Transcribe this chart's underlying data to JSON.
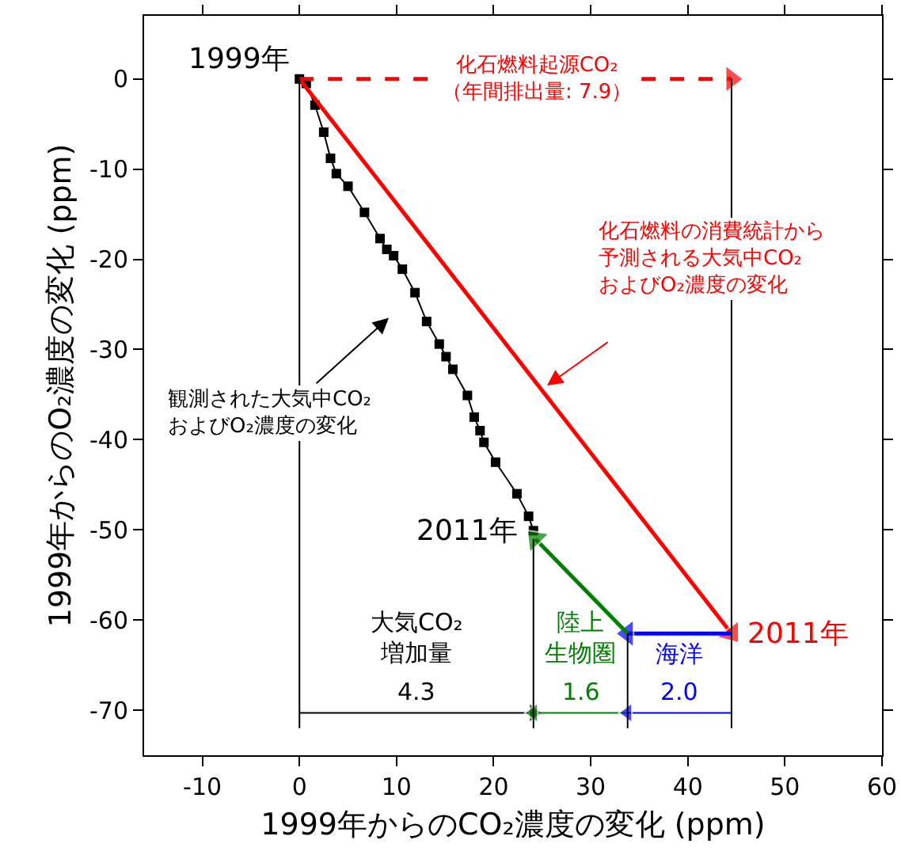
{
  "chart_data": {
    "type": "line",
    "xlabel": "1999年からのCO₂濃度の変化 (ppm)",
    "ylabel": "1999年からのO₂濃度の変化 (ppm)",
    "xlim": [
      -16,
      60
    ],
    "xticks": [
      -10,
      0,
      10,
      20,
      30,
      40,
      50,
      60
    ],
    "ylim": [
      -75,
      7
    ],
    "yticks": [
      0,
      -10,
      -20,
      -30,
      -40,
      -50,
      -60,
      -70
    ],
    "grid": false,
    "annotations": [
      {
        "text": "1999年",
        "x": 0,
        "y": 0
      },
      {
        "text": "2011年",
        "x": 24.1,
        "y": -50.1
      },
      {
        "text": "2011年",
        "x": 44.5,
        "y": -61.5
      },
      {
        "text": "4.3",
        "x": 12.05,
        "y": -70.3
      },
      {
        "text": "1.6",
        "x": 28.95,
        "y": -70.3
      },
      {
        "text": "2.0",
        "x": 39.15,
        "y": -70.3
      },
      "観測された大気中CO₂およびO₂濃度の変化",
      "化石燃料の消費統計から予測される大気中CO₂およびO₂濃度の変化"
    ],
    "series": [
      {
        "color": "#000000",
        "marker": "square",
        "x": [
          0,
          0.7,
          1.6,
          2.5,
          3.2,
          3.8,
          5.0,
          6.7,
          8.3,
          9.0,
          9.7,
          10.6,
          11.9,
          13.1,
          14.4,
          15.1,
          15.8,
          17.3,
          18.0,
          18.6,
          19.0,
          20.2,
          22.4,
          23.6,
          24.1
        ],
        "values": [
          0,
          -0.5,
          -2.9,
          -5.9,
          -8.8,
          -10.5,
          -11.9,
          -14.8,
          -17.7,
          -18.9,
          -19.6,
          -21.1,
          -23.7,
          -26.9,
          -29.4,
          -30.8,
          -32.2,
          -35.1,
          -37.5,
          -39.0,
          -40.3,
          -42.5,
          -46.0,
          -48.5,
          -50.1
        ]
      },
      {
        "color": "#ff0000",
        "marker": "triangle",
        "x": [
          0,
          44.5
        ],
        "values": [
          0,
          -61.5
        ]
      },
      {
        "name": "化石燃料起源CO₂（年間排出量: 7.9）",
        "color": "#ff0000",
        "marker": "triangle",
        "line_style": "dashed",
        "x": [
          0,
          44.5
        ],
        "values": [
          0,
          0
        ]
      },
      {
        "color": "#0000ff",
        "marker": "triangle",
        "x": [
          44.5,
          33.8
        ],
        "values": [
          -61.5,
          -61.5
        ]
      },
      {
        "color": "#008000",
        "marker": "triangle",
        "x": [
          33.8,
          24.3
        ],
        "values": [
          -61.5,
          -51
        ]
      },
      {
        "name": "大気CO₂増加量",
        "color": "#000000",
        "marker": "triangle",
        "x": [
          0,
          24.1
        ],
        "values": [
          -70.3,
          -70.3
        ]
      },
      {
        "name": "陸上生物圏",
        "color": "#008000",
        "marker": "triangle",
        "x": [
          33.8,
          24.1
        ],
        "values": [
          -70.3,
          -70.3
        ]
      },
      {
        "name": "海洋",
        "color": "#0000ff",
        "marker": "triangle",
        "x": [
          44.5,
          33.8
        ],
        "values": [
          -70.3,
          -70.3
        ]
      },
      {
        "color": "#000000",
        "marker": "none",
        "x": [
          0,
          0
        ],
        "values": [
          0,
          -72
        ]
      },
      {
        "color": "#000000",
        "marker": "none",
        "x": [
          24.1,
          24.1
        ],
        "values": [
          -51,
          -72
        ]
      },
      {
        "color": "#000000",
        "marker": "none",
        "x": [
          33.8,
          33.8
        ],
        "values": [
          -61.5,
          -72
        ]
      },
      {
        "color": "#000000",
        "marker": "none",
        "x": [
          44.5,
          44.5
        ],
        "values": [
          0,
          -72
        ]
      }
    ]
  }
}
